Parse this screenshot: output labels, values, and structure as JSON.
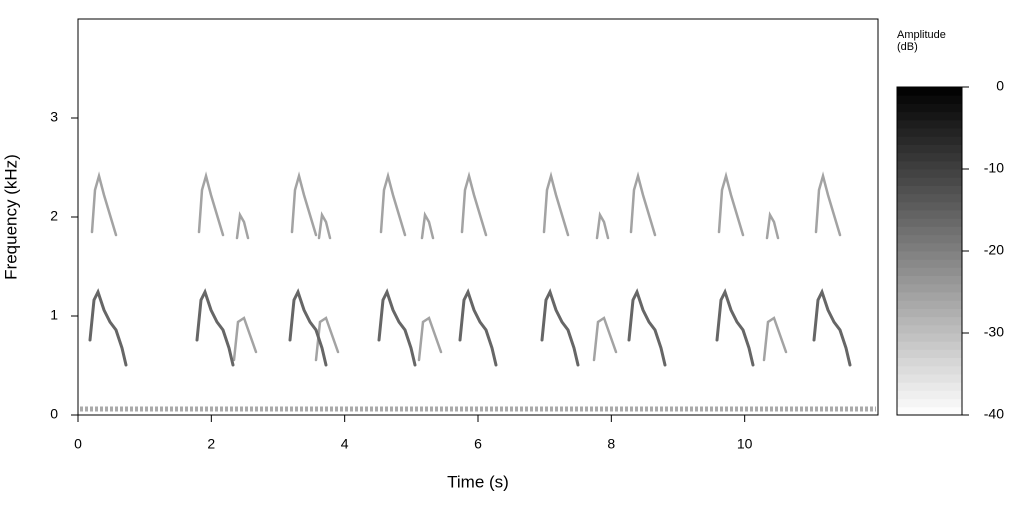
{
  "chart_data": {
    "type": "spectrogram",
    "xlabel": "Time (s)",
    "ylabel": "Frequency (kHz)",
    "xlim": [
      0,
      12
    ],
    "xticks": [
      0,
      2,
      4,
      6,
      8,
      10
    ],
    "ylim": [
      0,
      4
    ],
    "yticks": [
      0,
      1,
      2,
      3
    ],
    "colorbar_label": [
      "Amplitude",
      "(dB)"
    ],
    "clim": [
      -40,
      0
    ],
    "cticks": [
      0,
      -10,
      -20,
      -30,
      -40
    ],
    "colormap": [
      "#ffffff",
      "#000000"
    ]
  }
}
